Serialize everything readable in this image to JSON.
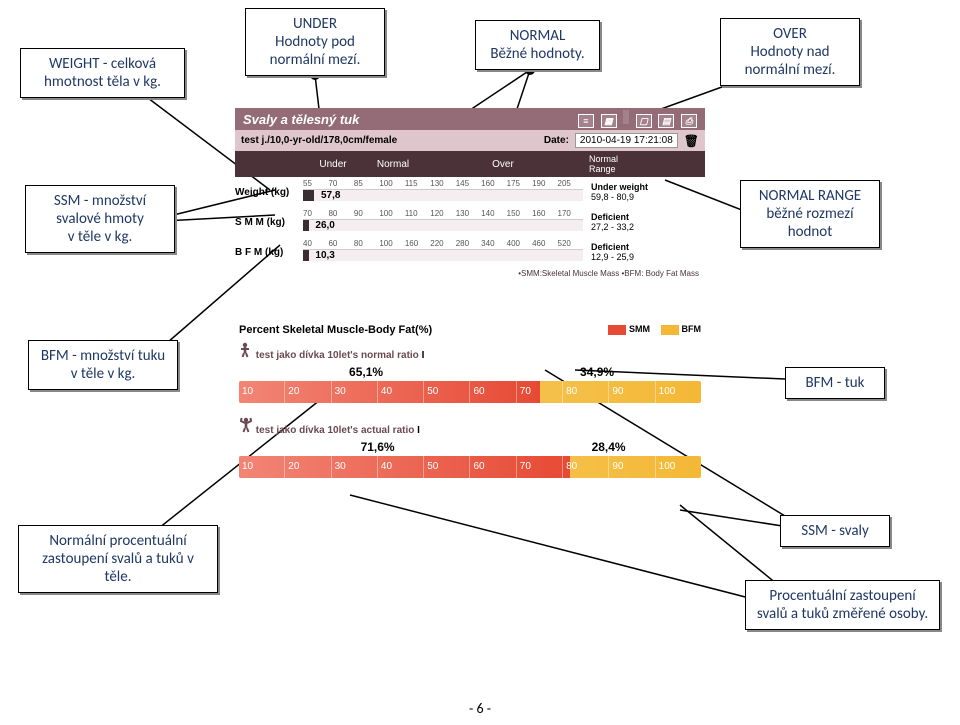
{
  "callouts": {
    "weight": "WEIGHT  - celková hmotnost těla v kg.",
    "under": "UNDER\nHodnoty pod normální mezí.",
    "normal": "NORMAL\nBěžné hodnoty.",
    "over": "OVER\nHodnoty nad normální mezí.",
    "ssm": "SSM  - množství svalové hmoty\nv těle v kg.",
    "normalRange": "NORMAL RANGE\nběžné rozmezí hodnot",
    "bfm": "BFM  - množství tuku v těle v kg.",
    "bfmTuk": "BFM - tuk",
    "ssmSvaly": "SSM - svaly",
    "normalPct": "Normální procentuální zastoupení svalů a tuků v těle.",
    "actualPct": "Procentuální zastoupení svalů a tuků změřené osoby."
  },
  "panel": {
    "title": "Svaly a tělesný tuk",
    "subject": "test j./10,0-yr-old/178,0cm/female",
    "dateLabel": "Date:",
    "dateValue": "2010-04-19 17:21:08",
    "zones": {
      "under": "Under",
      "normal": "Normal",
      "over": "Over",
      "range": "Normal\nRange"
    },
    "rows": {
      "weight": {
        "label": "Weight (kg)",
        "ticks": [
          "55",
          "70",
          "85",
          "100",
          "115",
          "130",
          "145",
          "160",
          "175",
          "190",
          "205"
        ],
        "value": "57,8",
        "fillPct": 4,
        "status": "Under weight",
        "range": "59,8 - 80,9"
      },
      "smm": {
        "label": "S M M  (kg)",
        "ticks": [
          "70",
          "80",
          "90",
          "100",
          "110",
          "120",
          "130",
          "140",
          "150",
          "160",
          "170"
        ],
        "value": "26,0",
        "fillPct": 2,
        "status": "Deficient",
        "range": "27,2 - 33,2"
      },
      "bfm": {
        "label": "B F M  (kg)",
        "ticks": [
          "40",
          "60",
          "80",
          "100",
          "160",
          "220",
          "280",
          "340",
          "400",
          "460",
          "520"
        ],
        "value": "10,3",
        "fillPct": 2,
        "status": "Deficient",
        "range": "12,9 - 25,9"
      }
    },
    "footnote": "•SMM:Skeletal Muscle Mass  •BFM: Body Fat Mass",
    "pctTitle": "Percent Skeletal Muscle-Body Fat(%)",
    "legend": {
      "smm": "SMM",
      "smmColor": "#e64a34",
      "bfm": "BFM",
      "bfmColor": "#f4b836"
    },
    "pct": {
      "normal": {
        "label": "test jako dívka 10let's normal ratio",
        "smm": "65,1%",
        "bfm": "34,9%",
        "smmWidth": 65.1,
        "ticks": [
          "10",
          "20",
          "30",
          "40",
          "50",
          "60",
          "70",
          "80",
          "90",
          "100"
        ]
      },
      "actual": {
        "label": "test jako dívka 10let's actual ratio",
        "smm": "71,6%",
        "bfm": "28,4%",
        "smmWidth": 71.6,
        "ticks": [
          "10",
          "20",
          "30",
          "40",
          "50",
          "60",
          "70",
          "80",
          "90",
          "100"
        ]
      }
    }
  },
  "pageNum": "- 6 -",
  "colors": {
    "calloutText": "#1f3864",
    "panelHead": "#946c78",
    "panelSub": "#dfc6cd",
    "zoneHead": "#4a3238"
  }
}
